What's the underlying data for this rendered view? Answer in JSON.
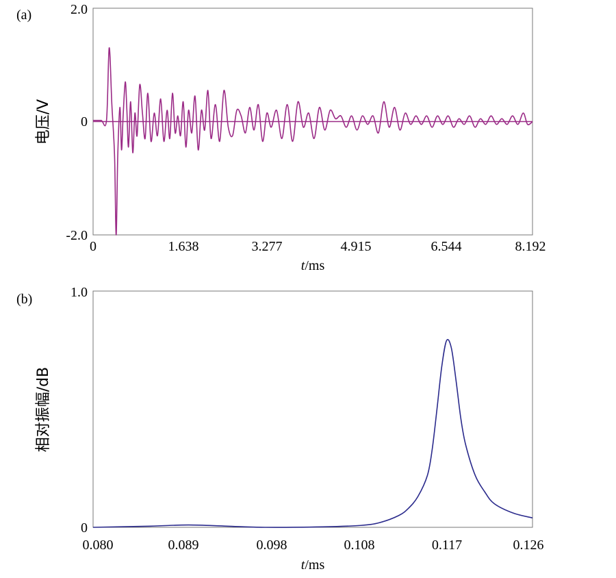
{
  "chart_data": [
    {
      "type": "line",
      "panel_label": "(a)",
      "xlabel_italic": "t",
      "xlabel_unit": "/ms",
      "ylabel": "电压/V",
      "xlim": [
        0,
        8.192
      ],
      "ylim": [
        -2.0,
        2.0
      ],
      "x_tick_labels": [
        "0",
        "1.638",
        "3.277",
        "4.915",
        "6.544",
        "8.192"
      ],
      "y_tick_labels": [
        "2.0",
        "0",
        "-2.0"
      ],
      "color": "#9a2a86",
      "series": [
        {
          "x": [
            0,
            0.15,
            0.25,
            0.3,
            0.35,
            0.4,
            0.43,
            0.46,
            0.5,
            0.53,
            0.56,
            0.6,
            0.63,
            0.66,
            0.7,
            0.74,
            0.78,
            0.82,
            0.87,
            0.92,
            0.97,
            1.02,
            1.08,
            1.14,
            1.2,
            1.26,
            1.32,
            1.38,
            1.43,
            1.48,
            1.53,
            1.58,
            1.63,
            1.68,
            1.73,
            1.78,
            1.84,
            1.9,
            1.96,
            2.02,
            2.08,
            2.14,
            2.2,
            2.28,
            2.36,
            2.44,
            2.52,
            2.6,
            2.68,
            2.76,
            2.84,
            2.92,
            3.0,
            3.08,
            3.16,
            3.24,
            3.32,
            3.42,
            3.52,
            3.62,
            3.72,
            3.82,
            3.92,
            4.02,
            4.12,
            4.22,
            4.32,
            4.42,
            4.52,
            4.62,
            4.72,
            4.82,
            4.92,
            5.02,
            5.12,
            5.22,
            5.32,
            5.42,
            5.52,
            5.62,
            5.72,
            5.82,
            5.92,
            6.02,
            6.12,
            6.22,
            6.32,
            6.42,
            6.52,
            6.62,
            6.72,
            6.82,
            6.92,
            7.02,
            7.12,
            7.22,
            7.32,
            7.42,
            7.52,
            7.62,
            7.72,
            7.82,
            7.92,
            8.02,
            8.1,
            8.192
          ],
          "y": [
            0.02,
            0.02,
            0.02,
            1.3,
            0.3,
            -0.6,
            -2.0,
            -0.6,
            0.25,
            -0.5,
            0.1,
            0.7,
            0.2,
            -0.45,
            0.35,
            -0.55,
            0.15,
            -0.25,
            0.65,
            0.15,
            -0.3,
            0.5,
            -0.35,
            0.15,
            -0.25,
            0.4,
            -0.35,
            0.2,
            -0.3,
            0.5,
            -0.2,
            0.1,
            -0.25,
            0.35,
            -0.45,
            0.2,
            -0.2,
            0.45,
            -0.5,
            0.2,
            -0.15,
            0.55,
            -0.3,
            0.3,
            -0.35,
            0.55,
            -0.1,
            -0.25,
            0.2,
            0.1,
            -0.2,
            0.25,
            -0.15,
            0.3,
            -0.35,
            0.15,
            -0.1,
            0.2,
            -0.3,
            0.3,
            -0.35,
            0.35,
            -0.1,
            0.15,
            -0.3,
            0.25,
            -0.15,
            0.2,
            0.05,
            0.1,
            -0.1,
            0.1,
            -0.15,
            0.1,
            -0.05,
            0.1,
            -0.2,
            0.35,
            -0.1,
            0.25,
            -0.15,
            0.15,
            -0.05,
            0.1,
            -0.05,
            0.1,
            -0.1,
            0.1,
            -0.05,
            0.1,
            -0.1,
            0.05,
            -0.05,
            0.1,
            -0.1,
            0.05,
            -0.05,
            0.1,
            -0.05,
            0.05,
            -0.05,
            0.1,
            -0.05,
            0.15,
            -0.05,
            0.0
          ]
        },
        {
          "x": [
            0,
            8.192
          ],
          "y": [
            0,
            0
          ]
        }
      ]
    },
    {
      "type": "line",
      "panel_label": "(b)",
      "xlabel_italic": "t",
      "xlabel_unit": "/ms",
      "ylabel": "相对振幅/dB",
      "xlim": [
        0.08,
        0.126
      ],
      "ylim": [
        0,
        1.0
      ],
      "x_tick_labels": [
        "0.080",
        "0.089",
        "0.098",
        "0.108",
        "0.117",
        "0.126"
      ],
      "y_tick_labels": [
        "1.0",
        "0"
      ],
      "color": "#2a2a8c",
      "series": [
        {
          "x": [
            0.08,
            0.086,
            0.09,
            0.094,
            0.098,
            0.104,
            0.108,
            0.11,
            0.112,
            0.113,
            0.114,
            0.115,
            0.1155,
            0.116,
            0.1165,
            0.117,
            0.1175,
            0.118,
            0.1185,
            0.119,
            0.12,
            0.121,
            0.122,
            0.124,
            0.126
          ],
          "y": [
            0.0,
            0.005,
            0.01,
            0.005,
            0.0,
            0.002,
            0.008,
            0.02,
            0.05,
            0.08,
            0.13,
            0.22,
            0.33,
            0.5,
            0.68,
            0.79,
            0.76,
            0.62,
            0.46,
            0.35,
            0.22,
            0.15,
            0.1,
            0.06,
            0.04
          ]
        }
      ]
    }
  ]
}
